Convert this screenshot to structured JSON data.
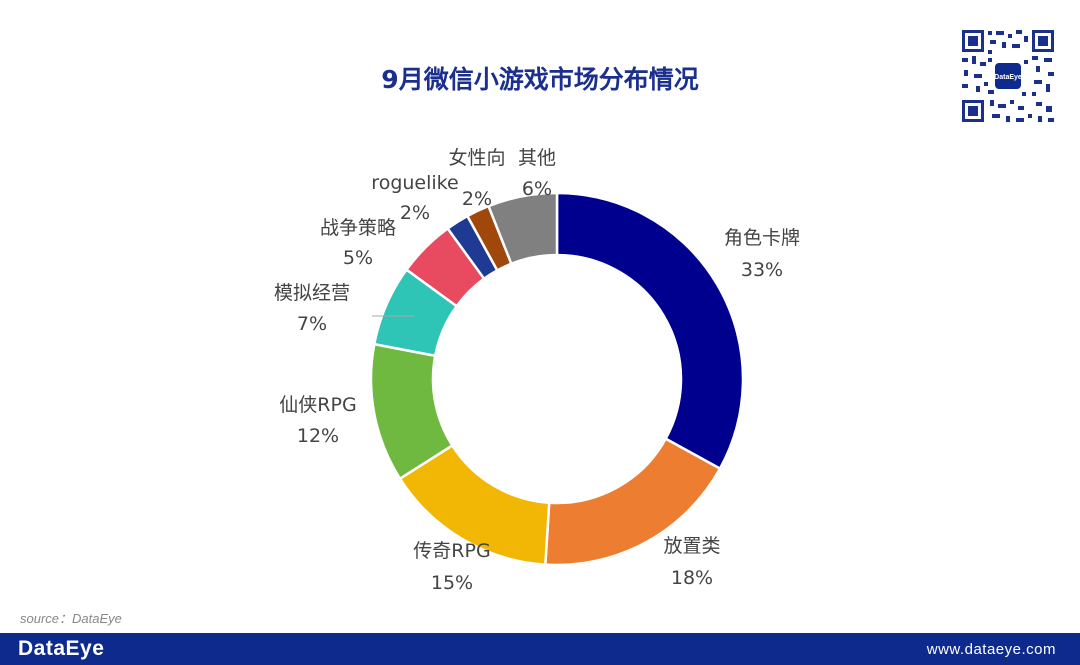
{
  "title": "9月微信小游戏市场分布情况",
  "source": "source：DataEye",
  "footer": {
    "logo": "DataEye",
    "url": "www.dataeye.com"
  },
  "qr_badge": "DataEye",
  "chart_data": {
    "type": "pie",
    "style": "donut",
    "title": "9月微信小游戏市场分布情况",
    "legend": "none",
    "categories": [
      "角色卡牌",
      "放置类",
      "传奇RPG",
      "仙侠RPG",
      "模拟经营",
      "战争策略",
      "roguelike",
      "女性向",
      "其他"
    ],
    "values": [
      33,
      18,
      15,
      12,
      7,
      5,
      2,
      2,
      6
    ],
    "value_labels": [
      "33%",
      "18%",
      "15%",
      "12%",
      "7%",
      "5%",
      "2%",
      "2%",
      "6%"
    ],
    "colors": [
      "#00008f",
      "#ed7d31",
      "#f2b705",
      "#70b940",
      "#2ec4b6",
      "#e84a5f",
      "#1f3a93",
      "#a0480c",
      "#808080"
    ]
  }
}
